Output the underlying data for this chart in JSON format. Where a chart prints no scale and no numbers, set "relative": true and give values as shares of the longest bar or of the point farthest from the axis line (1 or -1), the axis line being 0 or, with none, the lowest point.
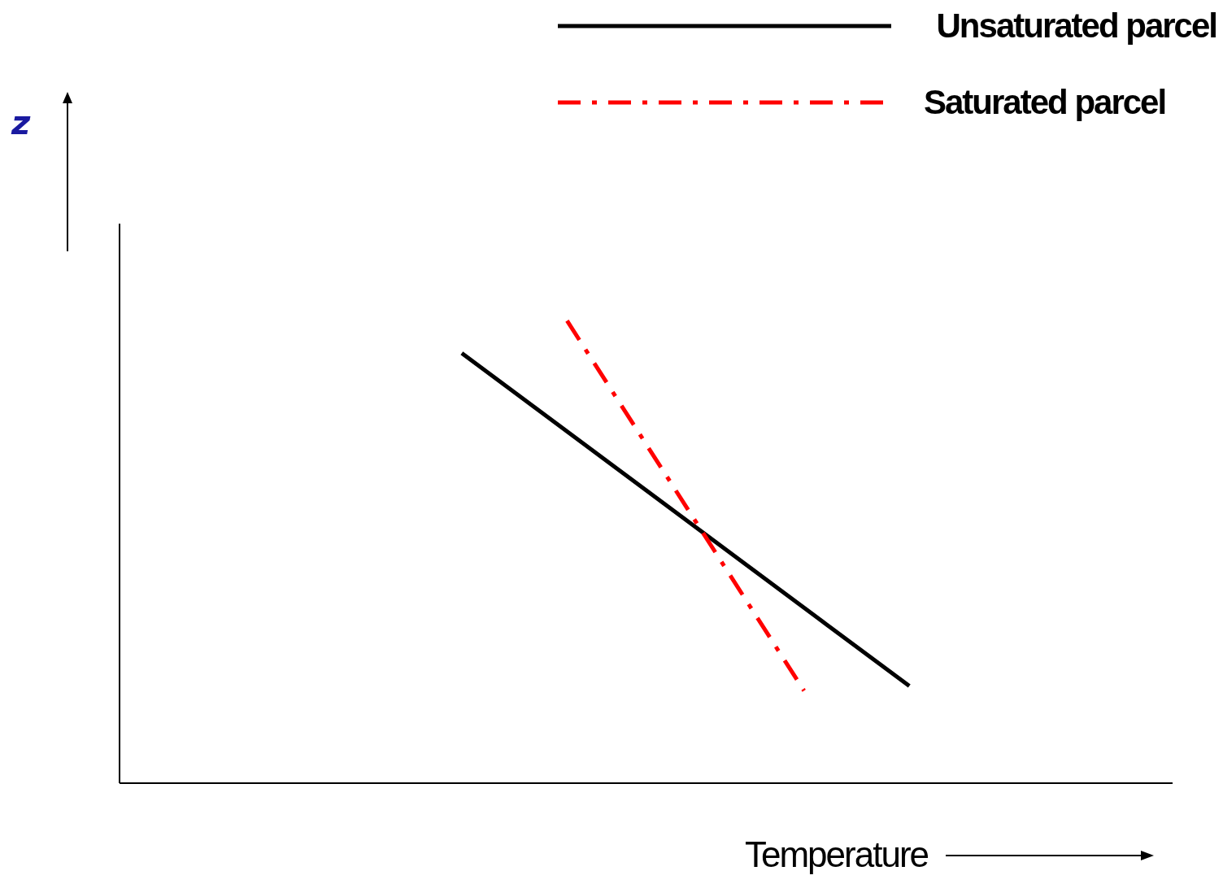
{
  "chart_data": {
    "type": "line",
    "relative": true,
    "xlabel": "Temperature",
    "annotations": [
      "z"
    ],
    "grid": false,
    "legend": "top right",
    "marker": "none",
    "categories": [
      null,
      null,
      null,
      null,
      null,
      null,
      null,
      null,
      null,
      null,
      null,
      null,
      null,
      null,
      null,
      null,
      null,
      null,
      null,
      null,
      null,
      null,
      null,
      null,
      null,
      null,
      null,
      null,
      null,
      null,
      null,
      null,
      null,
      null,
      null,
      null,
      null,
      null,
      null,
      null,
      null
    ],
    "series": [
      {
        "name": "Unsaturated parcel",
        "color": "#000000",
        "line_style": "solid",
        "values": [
          null,
          null,
          null,
          null,
          null,
          null,
          null,
          null,
          null,
          null,
          null,
          null,
          null,
          0.93,
          null,
          null,
          null,
          null,
          null,
          null,
          null,
          null,
          null,
          null,
          null,
          null,
          null,
          null,
          null,
          null,
          0.21,
          null,
          null,
          null,
          null,
          null,
          null,
          null,
          null,
          null,
          null
        ]
      },
      {
        "name": "Saturated parcel",
        "color": "#ff0000",
        "line_style": "dashed",
        "values": [
          null,
          null,
          null,
          null,
          null,
          null,
          null,
          null,
          null,
          null,
          null,
          null,
          null,
          null,
          null,
          null,
          null,
          1,
          null,
          null,
          null,
          null,
          null,
          null,
          null,
          null,
          0.2,
          null,
          null,
          null,
          null,
          null,
          null,
          null,
          null,
          null,
          null,
          null,
          null,
          null,
          null
        ]
      }
    ]
  }
}
